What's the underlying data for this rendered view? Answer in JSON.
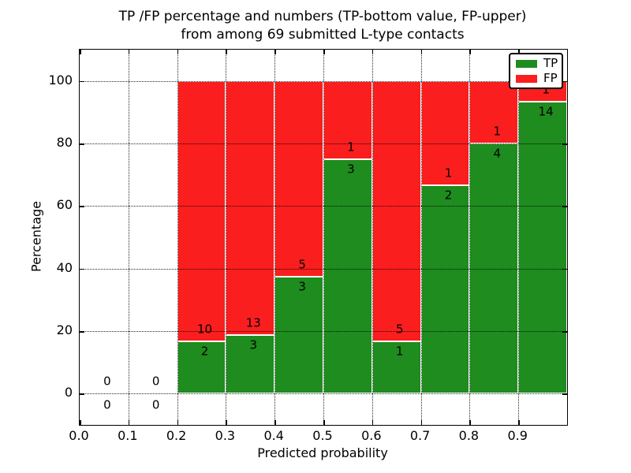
{
  "figure": {
    "title_line1": "TP /FP percentage and numbers (TP-bottom value, FP-upper)",
    "title_line2": "from among 69 submitted L-type contacts",
    "xlabel": "Predicted probability",
    "ylabel": "Percentage"
  },
  "legend": {
    "items": [
      {
        "label": "TP",
        "color": "#1e8c1e"
      },
      {
        "label": "FP",
        "color": "#fa1e1e"
      }
    ]
  },
  "chart_data": {
    "type": "bar",
    "stacked": true,
    "title": "TP /FP percentage and numbers (TP-bottom value, FP-upper)\nfrom among 69 submitted L-type contacts",
    "xlabel": "Predicted probability",
    "ylabel": "Percentage",
    "total_contacts": 69,
    "xlim": [
      0.0,
      1.0
    ],
    "ylim": [
      -10,
      110
    ],
    "xtick_values": [
      0.0,
      0.1,
      0.2,
      0.3,
      0.4,
      0.5,
      0.6,
      0.7,
      0.8,
      0.9
    ],
    "xtick_labels": [
      "0.0",
      "0.1",
      "0.2",
      "0.3",
      "0.4",
      "0.5",
      "0.6",
      "0.7",
      "0.8",
      "0.9"
    ],
    "ytick_values": [
      0,
      20,
      40,
      60,
      80,
      100
    ],
    "ytick_labels": [
      "0",
      "20",
      "40",
      "60",
      "80",
      "100"
    ],
    "grid": true,
    "legend_position": "upper right",
    "bin_width": 0.1,
    "series": [
      {
        "name": "TP",
        "color": "#1e8c1e"
      },
      {
        "name": "FP",
        "color": "#fa1e1e"
      }
    ],
    "bins": [
      {
        "x_start": 0.0,
        "range": "0.0-0.1",
        "tp_count": 0,
        "fp_count": 0,
        "tp_pct": 0,
        "fp_pct": 0,
        "has_bar": false
      },
      {
        "x_start": 0.1,
        "range": "0.1-0.2",
        "tp_count": 0,
        "fp_count": 0,
        "tp_pct": 0,
        "fp_pct": 0,
        "has_bar": false
      },
      {
        "x_start": 0.2,
        "range": "0.2-0.3",
        "tp_count": 2,
        "fp_count": 10,
        "tp_pct": 16.67,
        "fp_pct": 83.33,
        "has_bar": true
      },
      {
        "x_start": 0.3,
        "range": "0.3-0.4",
        "tp_count": 3,
        "fp_count": 13,
        "tp_pct": 18.75,
        "fp_pct": 81.25,
        "has_bar": true
      },
      {
        "x_start": 0.4,
        "range": "0.4-0.5",
        "tp_count": 3,
        "fp_count": 5,
        "tp_pct": 37.5,
        "fp_pct": 62.5,
        "has_bar": true
      },
      {
        "x_start": 0.5,
        "range": "0.5-0.6",
        "tp_count": 3,
        "fp_count": 1,
        "tp_pct": 75.0,
        "fp_pct": 25.0,
        "has_bar": true
      },
      {
        "x_start": 0.6,
        "range": "0.6-0.7",
        "tp_count": 1,
        "fp_count": 5,
        "tp_pct": 16.67,
        "fp_pct": 83.33,
        "has_bar": true
      },
      {
        "x_start": 0.7,
        "range": "0.7-0.8",
        "tp_count": 2,
        "fp_count": 1,
        "tp_pct": 66.67,
        "fp_pct": 33.33,
        "has_bar": true
      },
      {
        "x_start": 0.8,
        "range": "0.8-0.9",
        "tp_count": 4,
        "fp_count": 1,
        "tp_pct": 80.0,
        "fp_pct": 20.0,
        "has_bar": true
      },
      {
        "x_start": 0.9,
        "range": "0.9-1.0",
        "tp_count": 14,
        "fp_count": 1,
        "tp_pct": 93.33,
        "fp_pct": 6.67,
        "has_bar": true
      }
    ]
  }
}
